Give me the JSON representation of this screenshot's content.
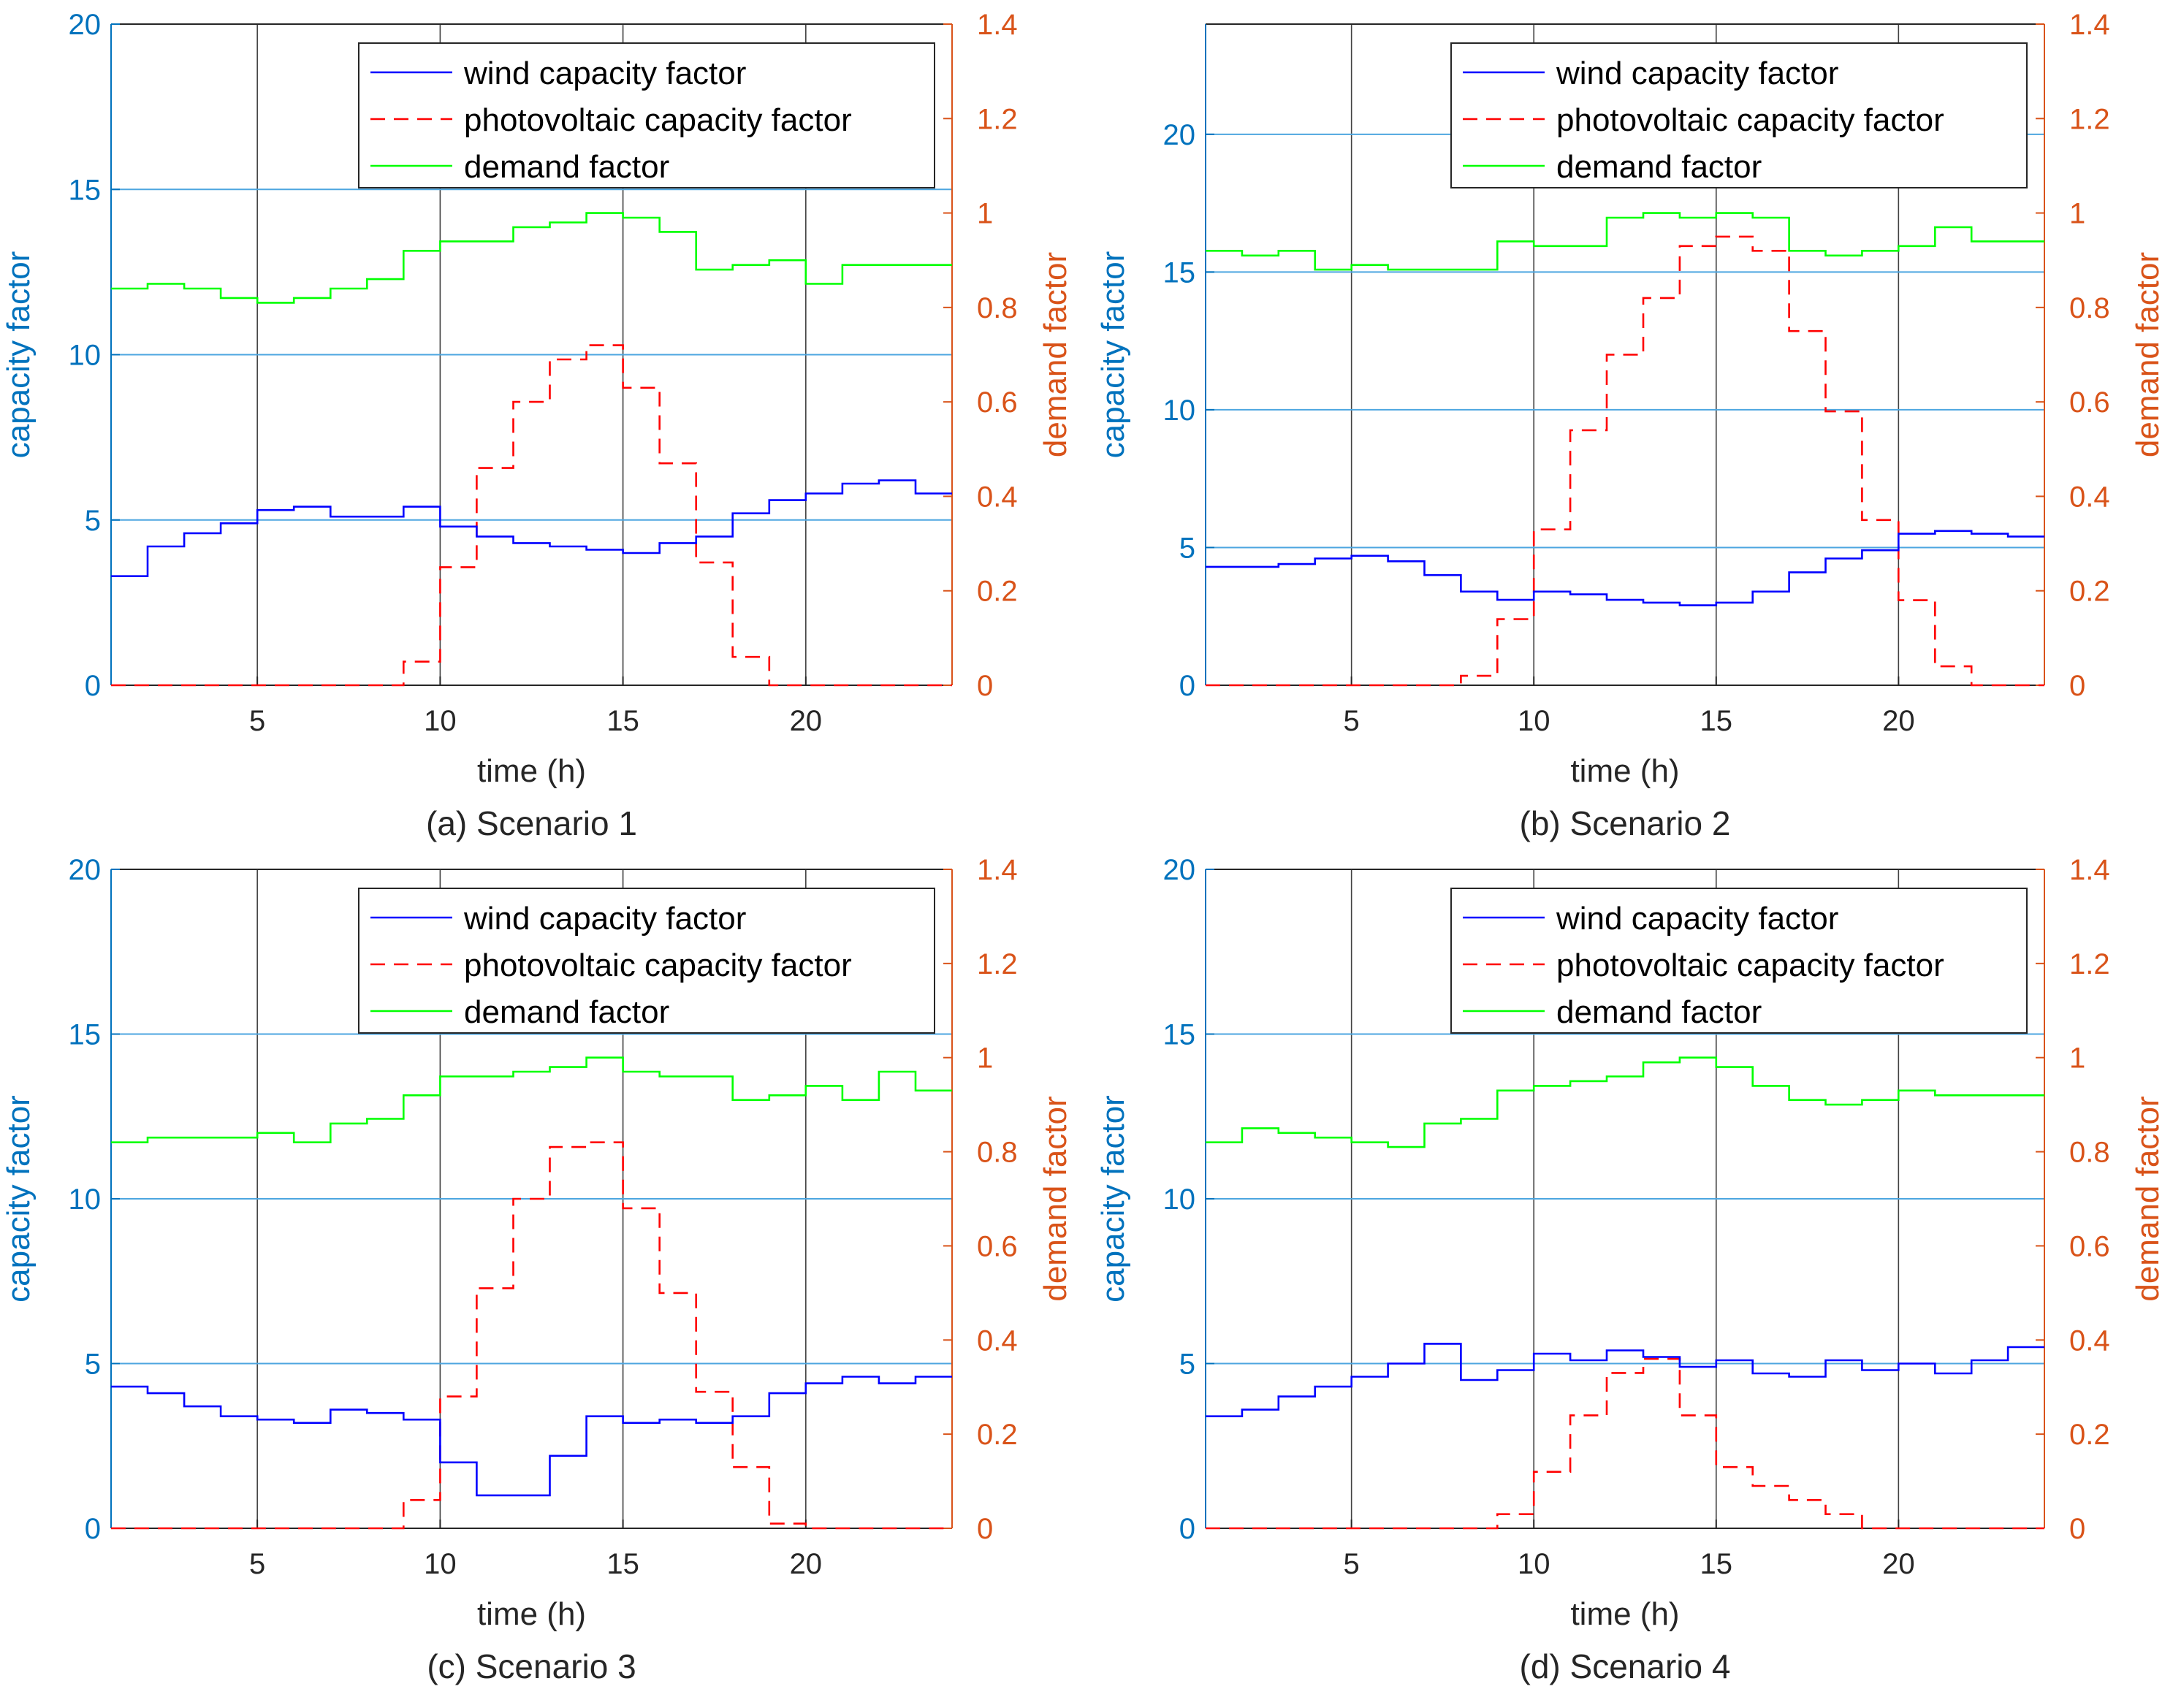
{
  "colors": {
    "left_axis": "#0072BD",
    "right_axis": "#D95319",
    "wind": "#0000FF",
    "pv": "#FF0000",
    "demand": "#00FF00",
    "hgrid": "#4DA6E0",
    "vgrid": "#000000",
    "axis_dark": "#262626"
  },
  "chart_data": [
    {
      "type": "line",
      "title": "",
      "caption": "(a) Scenario 1",
      "xlabel": "time (h)",
      "ylabel": "capacity factor",
      "ylabel_right": "demand factor",
      "x_hours": [
        1,
        2,
        3,
        4,
        5,
        6,
        7,
        8,
        9,
        10,
        11,
        12,
        13,
        14,
        15,
        16,
        17,
        18,
        19,
        20,
        21,
        22,
        23,
        24
      ],
      "xlim": [
        1,
        24
      ],
      "xticks": [
        "5",
        "10",
        "15",
        "20"
      ],
      "ylim": [
        0,
        20
      ],
      "yticks": [
        "0",
        "5",
        "10",
        "15",
        "20"
      ],
      "ylim_right": [
        0,
        1.4
      ],
      "yticks_right": [
        "0",
        "0.2",
        "0.4",
        "0.6",
        "0.8",
        "1",
        "1.2",
        "1.4"
      ],
      "legend": [
        "wind capacity factor",
        "photovoltaic capacity factor",
        "demand factor"
      ],
      "legend_position": "top-right",
      "series": [
        {
          "name": "wind capacity factor",
          "axis": "left",
          "style": "solid",
          "values": [
            3.3,
            4.2,
            4.6,
            4.9,
            5.3,
            5.4,
            5.1,
            5.1,
            5.4,
            4.8,
            4.5,
            4.3,
            4.2,
            4.1,
            4.0,
            4.3,
            4.5,
            5.2,
            5.6,
            5.8,
            6.1,
            6.2,
            5.8,
            5.8
          ]
        },
        {
          "name": "photovoltaic capacity factor",
          "axis": "right",
          "style": "dashed",
          "values": [
            0,
            0,
            0,
            0,
            0,
            0,
            0,
            0,
            0.05,
            0.25,
            0.46,
            0.6,
            0.69,
            0.72,
            0.63,
            0.47,
            0.26,
            0.06,
            0,
            0,
            0,
            0,
            0,
            0
          ]
        },
        {
          "name": "demand factor",
          "axis": "right",
          "style": "solid",
          "values": [
            0.84,
            0.85,
            0.84,
            0.82,
            0.81,
            0.82,
            0.84,
            0.86,
            0.92,
            0.94,
            0.94,
            0.97,
            0.98,
            1.0,
            0.99,
            0.96,
            0.88,
            0.89,
            0.9,
            0.85,
            0.89,
            0.89,
            0.89,
            0.89
          ]
        }
      ]
    },
    {
      "type": "line",
      "title": "",
      "caption": "(b) Scenario 2",
      "xlabel": "time (h)",
      "ylabel": "capacity factor",
      "ylabel_right": "demand factor",
      "x_hours": [
        1,
        2,
        3,
        4,
        5,
        6,
        7,
        8,
        9,
        10,
        11,
        12,
        13,
        14,
        15,
        16,
        17,
        18,
        19,
        20,
        21,
        22,
        23,
        24
      ],
      "xlim": [
        1,
        24
      ],
      "xticks": [
        "5",
        "10",
        "15",
        "20"
      ],
      "ylim": [
        0,
        24
      ],
      "yticks": [
        "0",
        "5",
        "10",
        "15",
        "20"
      ],
      "ylim_right": [
        0,
        1.4
      ],
      "yticks_right": [
        "0",
        "0.2",
        "0.4",
        "0.6",
        "0.8",
        "1",
        "1.2",
        "1.4"
      ],
      "legend": [
        "wind capacity factor",
        "photovoltaic capacity factor",
        "demand factor"
      ],
      "legend_position": "top-right",
      "series": [
        {
          "name": "wind capacity factor",
          "axis": "left",
          "style": "solid",
          "values": [
            4.3,
            4.3,
            4.4,
            4.6,
            4.7,
            4.5,
            4.0,
            3.4,
            3.1,
            3.4,
            3.3,
            3.1,
            3.0,
            2.9,
            3.0,
            3.4,
            4.1,
            4.6,
            4.9,
            5.5,
            5.6,
            5.5,
            5.4,
            5.4
          ]
        },
        {
          "name": "photovoltaic capacity factor",
          "axis": "right",
          "style": "dashed",
          "values": [
            0,
            0,
            0,
            0,
            0,
            0,
            0,
            0.02,
            0.14,
            0.33,
            0.54,
            0.7,
            0.82,
            0.93,
            0.95,
            0.92,
            0.75,
            0.58,
            0.35,
            0.18,
            0.04,
            0,
            0,
            0
          ]
        },
        {
          "name": "demand factor",
          "axis": "right",
          "style": "solid",
          "values": [
            0.92,
            0.91,
            0.92,
            0.88,
            0.89,
            0.88,
            0.88,
            0.88,
            0.94,
            0.93,
            0.93,
            0.99,
            1.0,
            0.99,
            1.0,
            0.99,
            0.92,
            0.91,
            0.92,
            0.93,
            0.97,
            0.94,
            0.94,
            0.94
          ]
        }
      ]
    },
    {
      "type": "line",
      "title": "",
      "caption": "(c) Scenario 3",
      "xlabel": "time (h)",
      "ylabel": "capacity factor",
      "ylabel_right": "demand factor",
      "x_hours": [
        1,
        2,
        3,
        4,
        5,
        6,
        7,
        8,
        9,
        10,
        11,
        12,
        13,
        14,
        15,
        16,
        17,
        18,
        19,
        20,
        21,
        22,
        23,
        24
      ],
      "xlim": [
        1,
        24
      ],
      "xticks": [
        "5",
        "10",
        "15",
        "20"
      ],
      "ylim": [
        0,
        20
      ],
      "yticks": [
        "0",
        "5",
        "10",
        "15",
        "20"
      ],
      "ylim_right": [
        0,
        1.4
      ],
      "yticks_right": [
        "0",
        "0.2",
        "0.4",
        "0.6",
        "0.8",
        "1",
        "1.2",
        "1.4"
      ],
      "legend": [
        "wind capacity factor",
        "photovoltaic capacity factor",
        "demand factor"
      ],
      "legend_position": "top-right",
      "series": [
        {
          "name": "wind capacity factor",
          "axis": "left",
          "style": "solid",
          "values": [
            4.3,
            4.1,
            3.7,
            3.4,
            3.3,
            3.2,
            3.6,
            3.5,
            3.3,
            2.0,
            1.0,
            1.0,
            2.2,
            3.4,
            3.2,
            3.3,
            3.2,
            3.4,
            4.1,
            4.4,
            4.6,
            4.4,
            4.6,
            4.6
          ]
        },
        {
          "name": "photovoltaic capacity factor",
          "axis": "right",
          "style": "dashed",
          "values": [
            0,
            0,
            0,
            0,
            0,
            0,
            0,
            0,
            0.06,
            0.28,
            0.51,
            0.7,
            0.81,
            0.82,
            0.68,
            0.5,
            0.29,
            0.13,
            0.01,
            0,
            0,
            0,
            0,
            0
          ]
        },
        {
          "name": "demand factor",
          "axis": "right",
          "style": "solid",
          "values": [
            0.82,
            0.83,
            0.83,
            0.83,
            0.84,
            0.82,
            0.86,
            0.87,
            0.92,
            0.96,
            0.96,
            0.97,
            0.98,
            1.0,
            0.97,
            0.96,
            0.96,
            0.91,
            0.92,
            0.94,
            0.91,
            0.97,
            0.93,
            0.93
          ]
        }
      ]
    },
    {
      "type": "line",
      "title": "",
      "caption": "(d) Scenario 4",
      "xlabel": "time (h)",
      "ylabel": "capacity factor",
      "ylabel_right": "demand factor",
      "x_hours": [
        1,
        2,
        3,
        4,
        5,
        6,
        7,
        8,
        9,
        10,
        11,
        12,
        13,
        14,
        15,
        16,
        17,
        18,
        19,
        20,
        21,
        22,
        23,
        24
      ],
      "xlim": [
        1,
        24
      ],
      "xticks": [
        "5",
        "10",
        "15",
        "20"
      ],
      "ylim": [
        0,
        20
      ],
      "yticks": [
        "0",
        "5",
        "10",
        "15",
        "20"
      ],
      "ylim_right": [
        0,
        1.4
      ],
      "yticks_right": [
        "0",
        "0.2",
        "0.4",
        "0.6",
        "0.8",
        "1",
        "1.2",
        "1.4"
      ],
      "legend": [
        "wind capacity factor",
        "photovoltaic capacity factor",
        "demand factor"
      ],
      "legend_position": "top-right",
      "series": [
        {
          "name": "wind capacity factor",
          "axis": "left",
          "style": "solid",
          "values": [
            3.4,
            3.6,
            4.0,
            4.3,
            4.6,
            5.0,
            5.6,
            4.5,
            4.8,
            5.3,
            5.1,
            5.4,
            5.2,
            4.9,
            5.1,
            4.7,
            4.6,
            5.1,
            4.8,
            5.0,
            4.7,
            5.1,
            5.5,
            5.5
          ]
        },
        {
          "name": "photovoltaic capacity factor",
          "axis": "right",
          "style": "dashed",
          "values": [
            0,
            0,
            0,
            0,
            0,
            0,
            0,
            0,
            0.03,
            0.12,
            0.24,
            0.33,
            0.36,
            0.24,
            0.13,
            0.09,
            0.06,
            0.03,
            0,
            0,
            0,
            0,
            0,
            0
          ]
        },
        {
          "name": "demand factor",
          "axis": "right",
          "style": "solid",
          "values": [
            0.82,
            0.85,
            0.84,
            0.83,
            0.82,
            0.81,
            0.86,
            0.87,
            0.93,
            0.94,
            0.95,
            0.96,
            0.99,
            1.0,
            0.98,
            0.94,
            0.91,
            0.9,
            0.91,
            0.93,
            0.92,
            0.92,
            0.92,
            0.92
          ]
        }
      ]
    }
  ]
}
